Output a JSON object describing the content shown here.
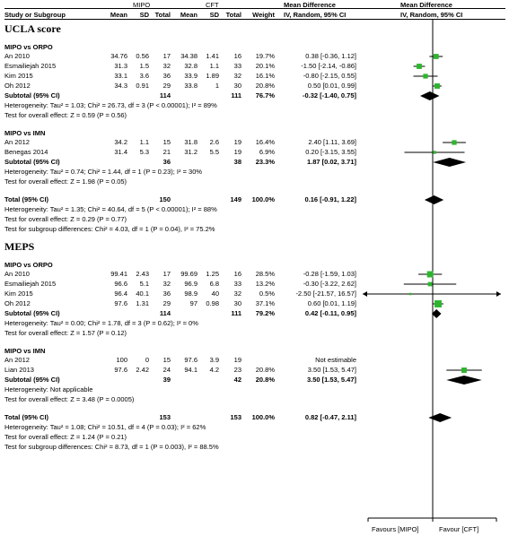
{
  "header": {
    "group1": "MIPO",
    "group2": "CFT",
    "md_title": "Mean Difference",
    "plot_title": "Mean Difference",
    "col_study": "Study or Subgroup",
    "col_mean1": "Mean",
    "col_sd1": "SD",
    "col_total1": "Total",
    "col_mean2": "Mean",
    "col_sd2": "SD",
    "col_total2": "Total",
    "col_weight": "Weight",
    "col_method": "IV, Random, 95% CI",
    "plot_method": "IV, Random, 95% CI"
  },
  "sections": [
    {
      "title": "UCLA score",
      "subgroups": [
        {
          "title": "MIPO vs ORPO",
          "rows": [
            {
              "study": "An 2010",
              "m1": "34.76",
              "sd1": "0.56",
              "n1": "17",
              "m2": "34.38",
              "sd2": "1.41",
              "n2": "16",
              "weight": "19.7%",
              "ci": "0.38 [-0.36, 1.12]"
            },
            {
              "study": "Esmailiejah 2015",
              "m1": "31.3",
              "sd1": "1.5",
              "n1": "32",
              "m2": "32.8",
              "sd2": "1.1",
              "n2": "33",
              "weight": "20.1%",
              "ci": "-1.50 [-2.14, -0.86]"
            },
            {
              "study": "Kim 2015",
              "m1": "33.1",
              "sd1": "3.6",
              "n1": "36",
              "m2": "33.9",
              "sd2": "1.89",
              "n2": "32",
              "weight": "16.1%",
              "ci": "-0.80 [-2.15, 0.55]"
            },
            {
              "study": "Oh 2012",
              "m1": "34.3",
              "sd1": "0.91",
              "n1": "29",
              "m2": "33.8",
              "sd2": "1",
              "n2": "30",
              "weight": "20.8%",
              "ci": "0.50 [0.01, 0.99]"
            }
          ],
          "subtotal": {
            "label": "Subtotal (95% CI)",
            "n1": "114",
            "n2": "111",
            "weight": "76.7%",
            "ci": "-0.32 [-1.40, 0.75]"
          },
          "heterogeneity": "Heterogeneity: Tau² = 1.03; Chi² = 26.73, df = 3 (P < 0.00001); I² = 89%",
          "overall": "Test for overall effect: Z = 0.59 (P = 0.56)"
        },
        {
          "title": "MIPO vs IMN",
          "rows": [
            {
              "study": "An 2012",
              "m1": "34.2",
              "sd1": "1.1",
              "n1": "15",
              "m2": "31.8",
              "sd2": "2.6",
              "n2": "19",
              "weight": "16.4%",
              "ci": "2.40 [1.11, 3.69]"
            },
            {
              "study": "Benegas 2014",
              "m1": "31.4",
              "sd1": "5.3",
              "n1": "21",
              "m2": "31.2",
              "sd2": "5.5",
              "n2": "19",
              "weight": "6.9%",
              "ci": "0.20 [-3.15, 3.55]"
            }
          ],
          "subtotal": {
            "label": "Subtotal (95% CI)",
            "n1": "36",
            "n2": "38",
            "weight": "23.3%",
            "ci": "1.87 [0.02, 3.71]"
          },
          "heterogeneity": "Heterogeneity: Tau² = 0.74; Chi² = 1.44, df = 1 (P = 0.23); I² = 30%",
          "overall": "Test for overall effect: Z = 1.98 (P = 0.05)"
        }
      ],
      "total": {
        "label": "Total (95% CI)",
        "n1": "150",
        "n2": "149",
        "weight": "100.0%",
        "ci": "0.16 [-0.91, 1.22]"
      },
      "total_heterogeneity": "Heterogeneity: Tau² = 1.35; Chi² = 40.64, df = 5 (P < 0.00001); I² = 88%",
      "total_overall": "Test for overall effect: Z = 0.29 (P = 0.77)",
      "subgroup_diff": "Test for subgroup differences: Chi² = 4.03, df = 1 (P = 0.04), I² = 75.2%"
    },
    {
      "title": "MEPS",
      "subgroups": [
        {
          "title": "MIPO vs ORPO",
          "rows": [
            {
              "study": "An 2010",
              "m1": "99.41",
              "sd1": "2.43",
              "n1": "17",
              "m2": "99.69",
              "sd2": "1.25",
              "n2": "16",
              "weight": "28.5%",
              "ci": "-0.28 [-1.59, 1.03]"
            },
            {
              "study": "Esmailiejah 2015",
              "m1": "96.6",
              "sd1": "5.1",
              "n1": "32",
              "m2": "96.9",
              "sd2": "6.8",
              "n2": "33",
              "weight": "13.2%",
              "ci": "-0.30 [-3.22, 2.62]"
            },
            {
              "study": "Kim 2015",
              "m1": "96.4",
              "sd1": "40.1",
              "n1": "36",
              "m2": "98.9",
              "sd2": "40",
              "n2": "32",
              "weight": "0.5%",
              "ci": "-2.50 [-21.57, 16.57]"
            },
            {
              "study": "Oh 2012",
              "m1": "97.6",
              "sd1": "1.31",
              "n1": "29",
              "m2": "97",
              "sd2": "0.98",
              "n2": "30",
              "weight": "37.1%",
              "ci": "0.60 [0.01, 1.19]"
            }
          ],
          "subtotal": {
            "label": "Subtotal (95% CI)",
            "n1": "114",
            "n2": "111",
            "weight": "79.2%",
            "ci": "0.42 [-0.11, 0.95]"
          },
          "heterogeneity": "Heterogeneity: Tau² = 0.00; Chi² = 1.78, df = 3 (P = 0.62); I² = 0%",
          "overall": "Test for overall effect: Z = 1.57 (P = 0.12)"
        },
        {
          "title": "MIPO vs IMN",
          "rows": [
            {
              "study": "An 2012",
              "m1": "100",
              "sd1": "0",
              "n1": "15",
              "m2": "97.6",
              "sd2": "3.9",
              "n2": "19",
              "weight": "",
              "ci": "Not estimable"
            },
            {
              "study": "Lian 2013",
              "m1": "97.6",
              "sd1": "2.42",
              "n1": "24",
              "m2": "94.1",
              "sd2": "4.2",
              "n2": "23",
              "weight": "20.8%",
              "ci": "3.50 [1.53, 5.47]"
            }
          ],
          "subtotal": {
            "label": "Subtotal (95% CI)",
            "n1": "39",
            "n2": "42",
            "weight": "20.8%",
            "ci": "3.50 [1.53, 5.47]"
          },
          "heterogeneity": "Heterogeneity: Not applicable",
          "overall": "Test for overall effect: Z = 3.48 (P = 0.0005)"
        }
      ],
      "total": {
        "label": "Total (95% CI)",
        "n1": "153",
        "n2": "153",
        "weight": "100.0%",
        "ci": "0.82 [-0.47, 2.11]"
      },
      "total_heterogeneity": "Heterogeneity: Tau² = 1.08; Chi² = 10.51, df = 4 (P = 0.03); I² = 62%",
      "total_overall": "Test for overall effect: Z = 1.24 (P = 0.21)",
      "subgroup_diff": "Test for subgroup differences: Chi² = 8.73, df = 1 (P = 0.003), I² = 88.5%"
    }
  ],
  "footer": {
    "favours_left": "Favours [MIPO]",
    "favours_right": "Favour [CFT]"
  },
  "colors": {
    "square": "#2db52d",
    "diamond": "#000000",
    "line": "#000000"
  },
  "chart_data": {
    "type": "forest",
    "xlim": [
      -4,
      4
    ],
    "estimates": [
      {
        "section": "UCLA score",
        "label": "An 2010",
        "md": 0.38,
        "lo": -0.36,
        "hi": 1.12,
        "weight": 19.7,
        "kind": "study"
      },
      {
        "section": "UCLA score",
        "label": "Esmailiejah 2015",
        "md": -1.5,
        "lo": -2.14,
        "hi": -0.86,
        "weight": 20.1,
        "kind": "study"
      },
      {
        "section": "UCLA score",
        "label": "Kim 2015",
        "md": -0.8,
        "lo": -2.15,
        "hi": 0.55,
        "weight": 16.1,
        "kind": "study"
      },
      {
        "section": "UCLA score",
        "label": "Oh 2012",
        "md": 0.5,
        "lo": 0.01,
        "hi": 0.99,
        "weight": 20.8,
        "kind": "study"
      },
      {
        "section": "UCLA score",
        "label": "Subtotal MIPO vs ORPO",
        "md": -0.32,
        "lo": -1.4,
        "hi": 0.75,
        "weight": 76.7,
        "kind": "diamond"
      },
      {
        "section": "UCLA score",
        "label": "An 2012",
        "md": 2.4,
        "lo": 1.11,
        "hi": 3.69,
        "weight": 16.4,
        "kind": "study"
      },
      {
        "section": "UCLA score",
        "label": "Benegas 2014",
        "md": 0.2,
        "lo": -3.15,
        "hi": 3.55,
        "weight": 6.9,
        "kind": "study"
      },
      {
        "section": "UCLA score",
        "label": "Subtotal MIPO vs IMN",
        "md": 1.87,
        "lo": 0.02,
        "hi": 3.71,
        "weight": 23.3,
        "kind": "diamond"
      },
      {
        "section": "UCLA score",
        "label": "Total",
        "md": 0.16,
        "lo": -0.91,
        "hi": 1.22,
        "weight": 100,
        "kind": "diamond"
      },
      {
        "section": "MEPS",
        "label": "An 2010",
        "md": -0.28,
        "lo": -1.59,
        "hi": 1.03,
        "weight": 28.5,
        "kind": "study"
      },
      {
        "section": "MEPS",
        "label": "Esmailiejah 2015",
        "md": -0.3,
        "lo": -3.22,
        "hi": 2.62,
        "weight": 13.2,
        "kind": "study"
      },
      {
        "section": "MEPS",
        "label": "Kim 2015",
        "md": -2.5,
        "lo": -21.57,
        "hi": 16.57,
        "weight": 0.5,
        "kind": "study"
      },
      {
        "section": "MEPS",
        "label": "Oh 2012",
        "md": 0.6,
        "lo": 0.01,
        "hi": 1.19,
        "weight": 37.1,
        "kind": "study"
      },
      {
        "section": "MEPS",
        "label": "Subtotal MIPO vs ORPO",
        "md": 0.42,
        "lo": -0.11,
        "hi": 0.95,
        "weight": 79.2,
        "kind": "diamond"
      },
      {
        "section": "MEPS",
        "label": "Lian 2013",
        "md": 3.5,
        "lo": 1.53,
        "hi": 5.47,
        "weight": 20.8,
        "kind": "study"
      },
      {
        "section": "MEPS",
        "label": "Subtotal MIPO vs IMN",
        "md": 3.5,
        "lo": 1.53,
        "hi": 5.47,
        "weight": 20.8,
        "kind": "diamond"
      },
      {
        "section": "MEPS",
        "label": "Total",
        "md": 0.82,
        "lo": -0.47,
        "hi": 2.11,
        "weight": 100,
        "kind": "diamond"
      }
    ]
  }
}
